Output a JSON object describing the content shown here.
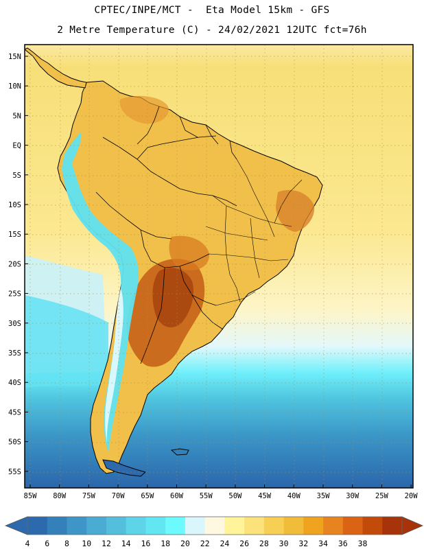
{
  "header": {
    "line1": "CPTEC/INPE/MCT -  Eta Model 15km - GFS",
    "line2": "2 Metre Temperature (C) - 24/02/2021 12UTC fct=76h"
  },
  "map": {
    "lat_labels": [
      "15N",
      "10N",
      "5N",
      "EQ",
      "5S",
      "10S",
      "15S",
      "20S",
      "25S",
      "30S",
      "35S",
      "40S",
      "45S",
      "50S",
      "55S"
    ],
    "lon_labels": [
      "85W",
      "80W",
      "75W",
      "70W",
      "65W",
      "60W",
      "55W",
      "50W",
      "45W",
      "40W",
      "35W",
      "30W",
      "25W",
      "20W"
    ],
    "lon_range": [
      -85,
      -20
    ],
    "lat_range": [
      -57,
      16
    ],
    "ocean_tropical_color": "#f7e48a",
    "land_base_color": "#f0c04a",
    "land_hot_color": "#c8661a",
    "land_hottest_color": "#a9460f",
    "andes_cold_color": "#5fe2f0",
    "south_ocean_color": "#3a8fc4",
    "coast_color": "#000000"
  },
  "colorbar": {
    "labels": [
      "4",
      "6",
      "8",
      "10",
      "12",
      "14",
      "16",
      "18",
      "20",
      "22",
      "24",
      "26",
      "28",
      "30",
      "32",
      "34",
      "36",
      "38"
    ],
    "colors": [
      "#2d69ad",
      "#3380ba",
      "#3e96c8",
      "#4aabd3",
      "#54bfdc",
      "#5dd4e8",
      "#62e6f2",
      "#6cfaff",
      "#d8f6fb",
      "#fff8e0",
      "#fff49a",
      "#fce27a",
      "#f6cf54",
      "#f0bc3a",
      "#efa31e",
      "#e78420",
      "#da6414",
      "#c24b0a",
      "#a7330a"
    ]
  }
}
